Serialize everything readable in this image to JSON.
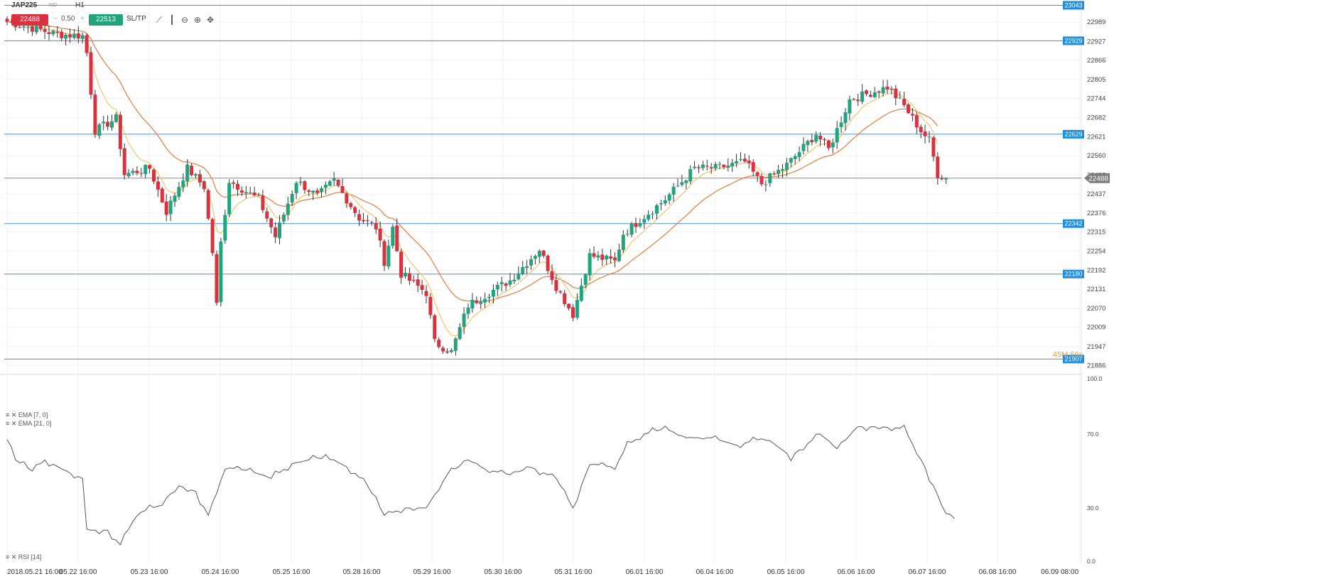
{
  "header": {
    "symbol": "JAP225",
    "symbol_sub": "IND",
    "timeframe": "H1",
    "bid": "22488",
    "minus_sign": "−",
    "spread": "0.50",
    "plus_sign": "+",
    "ask": "22513",
    "sltp_label": "SL/TP"
  },
  "legend": {
    "ema7": "EMA [7, 0]",
    "ema21": "EMA [21, 0]",
    "rsi": "RSI [14]"
  },
  "colors": {
    "up": "#1fa47e",
    "down": "#d9313d",
    "ema7": "#f3c46b",
    "ema21": "#e27d43",
    "level_line": "#4a8fd0",
    "level_tag": "#1e8fe0",
    "price_tag": "#7d7d7d",
    "rsi": "#555555"
  },
  "chart_data": [
    {
      "type": "candlestick",
      "title": "JAP225 H1",
      "ylim": [
        21860,
        23060
      ],
      "y_ticks": [
        "22989",
        "22927",
        "22866",
        "22805",
        "22744",
        "22682",
        "22621",
        "22560",
        "22498",
        "22437",
        "22376",
        "22315",
        "22254",
        "22192",
        "22131",
        "22070",
        "22009",
        "21947",
        "21886"
      ],
      "x_ticks": [
        "2018.05.21 16:00",
        "05.22 16:00",
        "05.23 16:00",
        "05.24 16:00",
        "05.25 16:00",
        "05.28 16:00",
        "05.29 16:00",
        "05.30 16:00",
        "05.31 16:00",
        "06.01 16:00",
        "06.04 16:00",
        "06.05 16:00",
        "06.06 16:00",
        "06.07 16:00",
        "06.08 16:00",
        "06.09 08:00"
      ],
      "levels": [
        "23043",
        "22929",
        "22629",
        "22342",
        "22180",
        "21907"
      ],
      "current_price": "22488",
      "timer": "45M 56s",
      "ohlc_anchors": [
        [
          0,
          22990
        ],
        [
          12,
          22950
        ],
        [
          18,
          22945
        ],
        [
          19,
          22890
        ],
        [
          21,
          22640
        ],
        [
          26,
          22680
        ],
        [
          28,
          22500
        ],
        [
          34,
          22520
        ],
        [
          38,
          22380
        ],
        [
          43,
          22520
        ],
        [
          47,
          22460
        ],
        [
          49,
          22250
        ],
        [
          50,
          22080
        ],
        [
          51,
          22280
        ],
        [
          53,
          22480
        ],
        [
          60,
          22420
        ],
        [
          64,
          22300
        ],
        [
          69,
          22480
        ],
        [
          74,
          22430
        ],
        [
          78,
          22480
        ],
        [
          84,
          22360
        ],
        [
          88,
          22330
        ],
        [
          90,
          22220
        ],
        [
          92,
          22330
        ],
        [
          94,
          22180
        ],
        [
          100,
          22120
        ],
        [
          102,
          21960
        ],
        [
          106,
          21930
        ],
        [
          110,
          22080
        ],
        [
          120,
          22160
        ],
        [
          127,
          22260
        ],
        [
          131,
          22140
        ],
        [
          135,
          22050
        ],
        [
          139,
          22240
        ],
        [
          145,
          22220
        ],
        [
          147,
          22310
        ],
        [
          157,
          22420
        ],
        [
          164,
          22520
        ],
        [
          169,
          22520
        ],
        [
          176,
          22540
        ],
        [
          180,
          22470
        ],
        [
          186,
          22530
        ],
        [
          193,
          22630
        ],
        [
          196,
          22580
        ],
        [
          201,
          22740
        ],
        [
          210,
          22780
        ],
        [
          214,
          22720
        ],
        [
          218,
          22640
        ],
        [
          220,
          22610
        ],
        [
          222,
          22500
        ],
        [
          224,
          22488
        ]
      ],
      "series": [
        {
          "name": "EMA [7, 0]"
        },
        {
          "name": "EMA [21, 0]"
        }
      ]
    },
    {
      "type": "line",
      "title": "RSI [14]",
      "ylim": [
        0,
        100
      ],
      "y_ticks": [
        "100.0",
        "70.0",
        "30.0",
        "0.0"
      ],
      "anchors": [
        [
          0,
          67
        ],
        [
          2,
          56
        ],
        [
          6,
          50
        ],
        [
          9,
          56
        ],
        [
          15,
          49
        ],
        [
          18,
          46
        ],
        [
          19,
          18
        ],
        [
          24,
          18
        ],
        [
          27,
          10
        ],
        [
          31,
          27
        ],
        [
          36,
          31
        ],
        [
          41,
          42
        ],
        [
          45,
          39
        ],
        [
          48,
          26
        ],
        [
          50,
          38
        ],
        [
          52,
          52
        ],
        [
          58,
          50
        ],
        [
          63,
          46
        ],
        [
          68,
          54
        ],
        [
          74,
          57
        ],
        [
          78,
          56
        ],
        [
          82,
          51
        ],
        [
          86,
          42
        ],
        [
          90,
          26
        ],
        [
          95,
          30
        ],
        [
          100,
          30
        ],
        [
          105,
          48
        ],
        [
          110,
          56
        ],
        [
          114,
          51
        ],
        [
          120,
          48
        ],
        [
          125,
          52
        ],
        [
          131,
          46
        ],
        [
          135,
          30
        ],
        [
          139,
          54
        ],
        [
          145,
          52
        ],
        [
          148,
          64
        ],
        [
          152,
          70
        ],
        [
          157,
          73
        ],
        [
          162,
          68
        ],
        [
          168,
          68
        ],
        [
          174,
          64
        ],
        [
          181,
          68
        ],
        [
          187,
          58
        ],
        [
          194,
          70
        ],
        [
          198,
          62
        ],
        [
          203,
          74
        ],
        [
          208,
          74
        ],
        [
          214,
          73
        ],
        [
          219,
          52
        ],
        [
          224,
          27
        ],
        [
          226,
          26
        ]
      ]
    }
  ]
}
